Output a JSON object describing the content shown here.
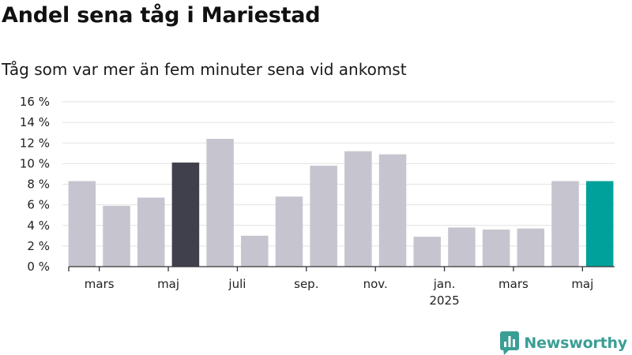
{
  "header": {
    "title": "Andel sena tåg i Mariestad",
    "subtitle": "Tåg som var mer än fem minuter sena vid ankomst"
  },
  "brand": {
    "name": "Newsworthy",
    "icon": "bar-chart-speech-bubble-icon",
    "color": "#3a9e95"
  },
  "colors": {
    "default_bar": "#c6c5cf",
    "highlight_previous": "#40404c",
    "highlight_current": "#00a19a",
    "grid": "#e2e2e2",
    "axis": "#333333"
  },
  "chart_data": {
    "type": "bar",
    "title": "Andel sena tåg i Mariestad",
    "subtitle": "Tåg som var mer än fem minuter sena vid ankomst",
    "xlabel": "",
    "ylabel": "",
    "y_unit": "%",
    "ylim": [
      0,
      16
    ],
    "y_ticks": [
      0,
      2,
      4,
      6,
      8,
      10,
      12,
      14,
      16
    ],
    "y_tick_labels": [
      "0 %",
      "2 %",
      "4 %",
      "6 %",
      "8 %",
      "10 %",
      "12 %",
      "14 %",
      "16 %"
    ],
    "grid": true,
    "categories": [
      "2024-02",
      "2024-03",
      "2024-04",
      "2024-05",
      "2024-06",
      "2024-07",
      "2024-08",
      "2024-09",
      "2024-10",
      "2024-11",
      "2024-12",
      "2025-01",
      "2025-02",
      "2025-03",
      "2025-04",
      "2025-05"
    ],
    "values": [
      8.3,
      5.9,
      6.7,
      10.1,
      12.4,
      3.0,
      6.8,
      9.8,
      11.2,
      10.9,
      2.9,
      3.8,
      3.6,
      3.7,
      8.3,
      8.3
    ],
    "highlight": {
      "2024-05": "highlight_previous",
      "2025-05": "highlight_current"
    },
    "x_tick_labels": [
      {
        "category": "2024-03",
        "label": "mars"
      },
      {
        "category": "2024-05",
        "label": "maj"
      },
      {
        "category": "2024-07",
        "label": "juli"
      },
      {
        "category": "2024-09",
        "label": "sep."
      },
      {
        "category": "2024-11",
        "label": "nov."
      },
      {
        "category": "2025-01",
        "label": "jan.",
        "sublabel": "2025"
      },
      {
        "category": "2025-03",
        "label": "mars"
      },
      {
        "category": "2025-05",
        "label": "maj"
      }
    ]
  }
}
